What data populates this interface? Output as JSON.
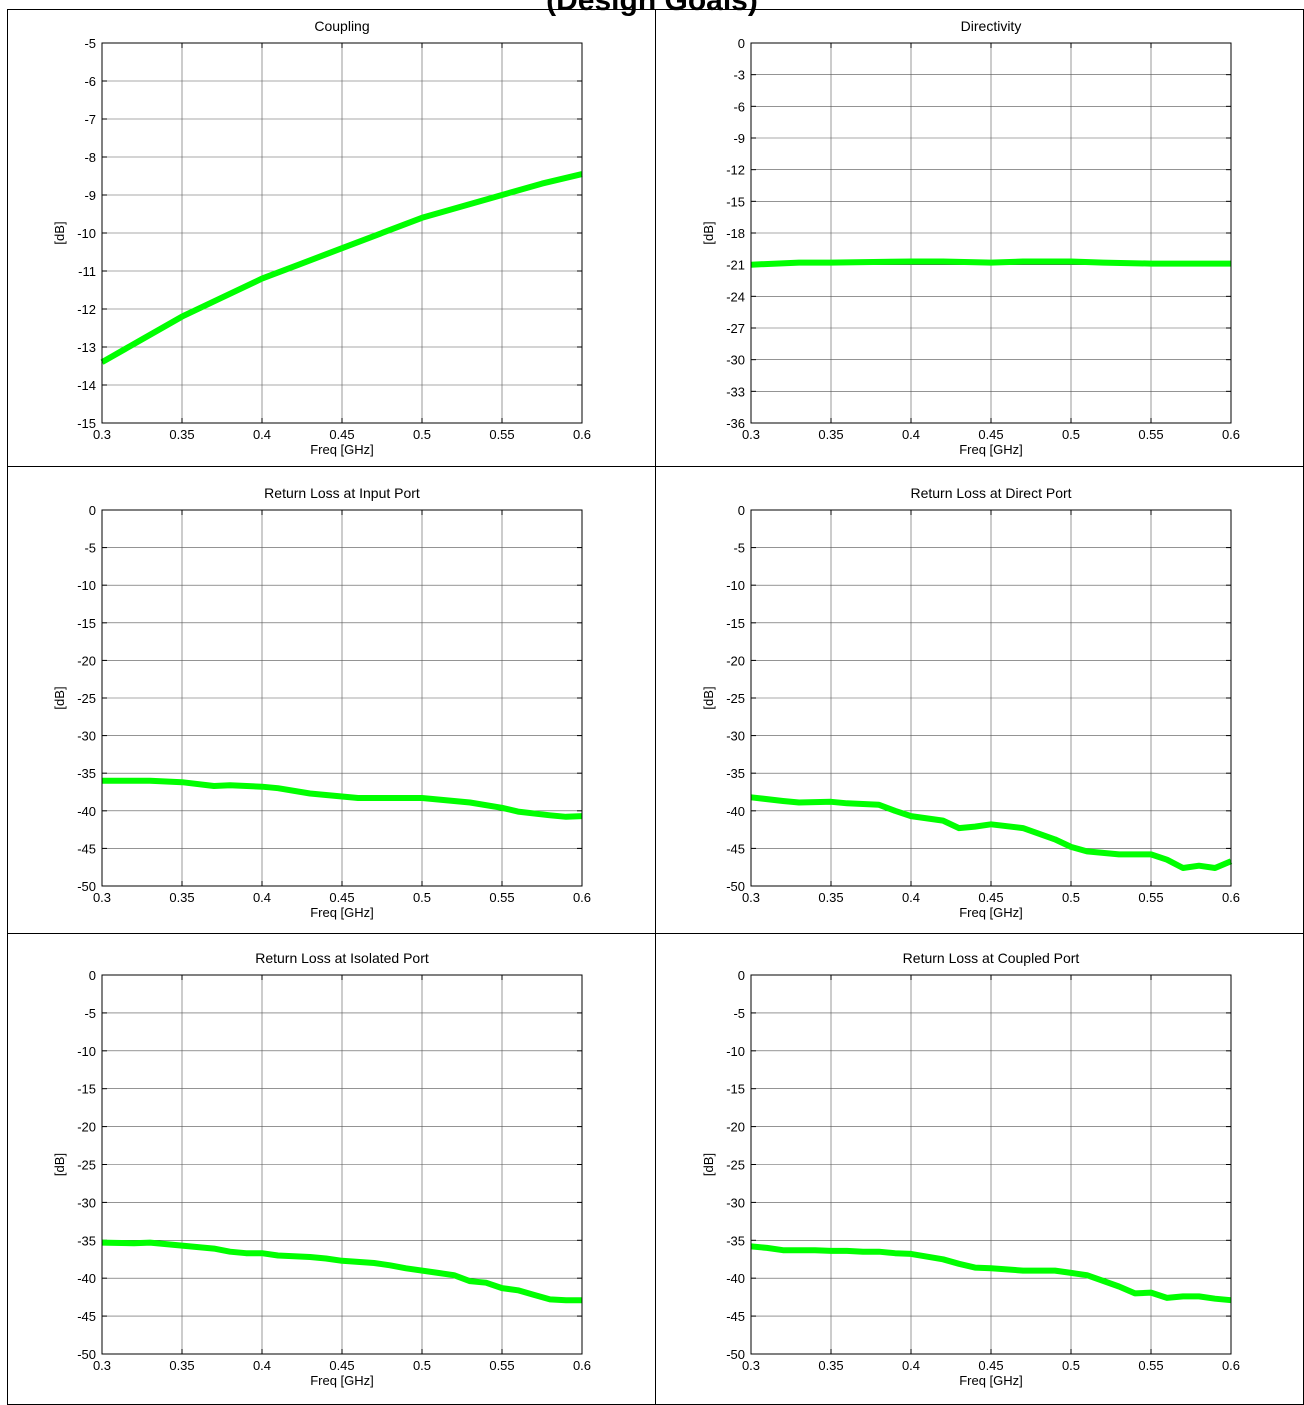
{
  "page": {
    "title": "(Design Goals)"
  },
  "colors": {
    "series": "#00ff00",
    "grid": "#000000",
    "border": "#000000"
  },
  "chart_data": [
    {
      "type": "line",
      "title": "Coupling",
      "xlabel": "Freq [GHz]",
      "ylabel": "[dB]",
      "xlim": [
        0.3,
        0.6
      ],
      "ylim": [
        -15,
        -5
      ],
      "xticks": [
        0.3,
        0.35,
        0.4,
        0.45,
        0.5,
        0.55,
        0.6
      ],
      "yticks": [
        -15,
        -14,
        -13,
        -12,
        -11,
        -10,
        -9,
        -8,
        -7,
        -6,
        -5
      ],
      "grid": true,
      "series": [
        {
          "x": [
            0.3,
            0.325,
            0.35,
            0.375,
            0.4,
            0.425,
            0.45,
            0.475,
            0.5,
            0.525,
            0.55,
            0.575,
            0.6
          ],
          "y": [
            -13.4,
            -12.8,
            -12.2,
            -11.7,
            -11.2,
            -10.8,
            -10.4,
            -10.0,
            -9.6,
            -9.3,
            -9.0,
            -8.7,
            -8.45
          ]
        }
      ]
    },
    {
      "type": "line",
      "title": "Directivity",
      "xlabel": "Freq [GHz]",
      "ylabel": "[dB]",
      "xlim": [
        0.3,
        0.6
      ],
      "ylim": [
        -36,
        0
      ],
      "xticks": [
        0.3,
        0.35,
        0.4,
        0.45,
        0.5,
        0.55,
        0.6
      ],
      "yticks": [
        -36,
        -33,
        -30,
        -27,
        -24,
        -21,
        -18,
        -15,
        -12,
        -9,
        -6,
        -3,
        0
      ],
      "grid": true,
      "series": [
        {
          "x": [
            0.3,
            0.33,
            0.35,
            0.4,
            0.42,
            0.45,
            0.47,
            0.5,
            0.52,
            0.55,
            0.6
          ],
          "y": [
            -21.0,
            -20.8,
            -20.8,
            -20.7,
            -20.7,
            -20.8,
            -20.7,
            -20.7,
            -20.8,
            -20.9,
            -20.9
          ]
        }
      ]
    },
    {
      "type": "line",
      "title": "Return Loss at Input Port",
      "xlabel": "Freq [GHz]",
      "ylabel": "[dB]",
      "xlim": [
        0.3,
        0.6
      ],
      "ylim": [
        -50,
        0
      ],
      "xticks": [
        0.3,
        0.35,
        0.4,
        0.45,
        0.5,
        0.55,
        0.6
      ],
      "yticks": [
        -50,
        -45,
        -40,
        -35,
        -30,
        -25,
        -20,
        -15,
        -10,
        -5,
        0
      ],
      "grid": true,
      "series": [
        {
          "x": [
            0.3,
            0.33,
            0.35,
            0.37,
            0.38,
            0.4,
            0.41,
            0.43,
            0.45,
            0.46,
            0.48,
            0.5,
            0.51,
            0.53,
            0.55,
            0.56,
            0.58,
            0.59,
            0.6
          ],
          "y": [
            -36.0,
            -36.0,
            -36.2,
            -36.7,
            -36.6,
            -36.8,
            -37.0,
            -37.7,
            -38.1,
            -38.3,
            -38.3,
            -38.3,
            -38.5,
            -38.9,
            -39.6,
            -40.1,
            -40.6,
            -40.8,
            -40.7
          ]
        }
      ]
    },
    {
      "type": "line",
      "title": "Return Loss at Direct Port",
      "xlabel": "Freq [GHz]",
      "ylabel": "[dB]",
      "xlim": [
        0.3,
        0.6
      ],
      "ylim": [
        -50,
        0
      ],
      "xticks": [
        0.3,
        0.35,
        0.4,
        0.45,
        0.5,
        0.55,
        0.6
      ],
      "yticks": [
        -50,
        -45,
        -40,
        -35,
        -30,
        -25,
        -20,
        -15,
        -10,
        -5,
        0
      ],
      "grid": true,
      "series": [
        {
          "x": [
            0.3,
            0.32,
            0.33,
            0.35,
            0.36,
            0.38,
            0.39,
            0.4,
            0.42,
            0.43,
            0.44,
            0.45,
            0.47,
            0.49,
            0.5,
            0.51,
            0.53,
            0.55,
            0.56,
            0.57,
            0.58,
            0.59,
            0.6
          ],
          "y": [
            -38.2,
            -38.7,
            -38.9,
            -38.8,
            -39.0,
            -39.2,
            -40.0,
            -40.7,
            -41.3,
            -42.3,
            -42.1,
            -41.8,
            -42.3,
            -43.8,
            -44.8,
            -45.4,
            -45.8,
            -45.8,
            -46.5,
            -47.6,
            -47.3,
            -47.6,
            -46.7
          ]
        }
      ]
    },
    {
      "type": "line",
      "title": "Return Loss at Isolated Port",
      "xlabel": "Freq [GHz]",
      "ylabel": "[dB]",
      "xlim": [
        0.3,
        0.6
      ],
      "ylim": [
        -50,
        0
      ],
      "xticks": [
        0.3,
        0.35,
        0.4,
        0.45,
        0.5,
        0.55,
        0.6
      ],
      "yticks": [
        -50,
        -45,
        -40,
        -35,
        -30,
        -25,
        -20,
        -15,
        -10,
        -5,
        0
      ],
      "grid": true,
      "series": [
        {
          "x": [
            0.3,
            0.32,
            0.33,
            0.34,
            0.36,
            0.37,
            0.38,
            0.39,
            0.4,
            0.41,
            0.43,
            0.44,
            0.45,
            0.47,
            0.48,
            0.49,
            0.51,
            0.52,
            0.53,
            0.54,
            0.55,
            0.56,
            0.57,
            0.58,
            0.59,
            0.6
          ],
          "y": [
            -35.3,
            -35.4,
            -35.3,
            -35.5,
            -35.9,
            -36.1,
            -36.5,
            -36.7,
            -36.7,
            -37.0,
            -37.2,
            -37.4,
            -37.7,
            -38.0,
            -38.3,
            -38.7,
            -39.3,
            -39.6,
            -40.4,
            -40.6,
            -41.3,
            -41.6,
            -42.2,
            -42.8,
            -42.9,
            -42.9
          ]
        }
      ]
    },
    {
      "type": "line",
      "title": "Return Loss at Coupled Port",
      "xlabel": "Freq [GHz]",
      "ylabel": "[dB]",
      "xlim": [
        0.3,
        0.6
      ],
      "ylim": [
        -50,
        0
      ],
      "xticks": [
        0.3,
        0.35,
        0.4,
        0.45,
        0.5,
        0.55,
        0.6
      ],
      "yticks": [
        -50,
        -45,
        -40,
        -35,
        -30,
        -25,
        -20,
        -15,
        -10,
        -5,
        0
      ],
      "grid": true,
      "series": [
        {
          "x": [
            0.3,
            0.31,
            0.32,
            0.34,
            0.35,
            0.36,
            0.37,
            0.38,
            0.39,
            0.4,
            0.42,
            0.43,
            0.44,
            0.45,
            0.47,
            0.48,
            0.49,
            0.5,
            0.51,
            0.53,
            0.54,
            0.55,
            0.56,
            0.57,
            0.58,
            0.59,
            0.6
          ],
          "y": [
            -35.8,
            -36.0,
            -36.3,
            -36.3,
            -36.4,
            -36.4,
            -36.5,
            -36.5,
            -36.7,
            -36.8,
            -37.5,
            -38.1,
            -38.6,
            -38.7,
            -39.0,
            -39.0,
            -39.0,
            -39.3,
            -39.6,
            -41.1,
            -42.0,
            -41.9,
            -42.6,
            -42.4,
            -42.4,
            -42.7,
            -42.9
          ]
        }
      ]
    }
  ]
}
